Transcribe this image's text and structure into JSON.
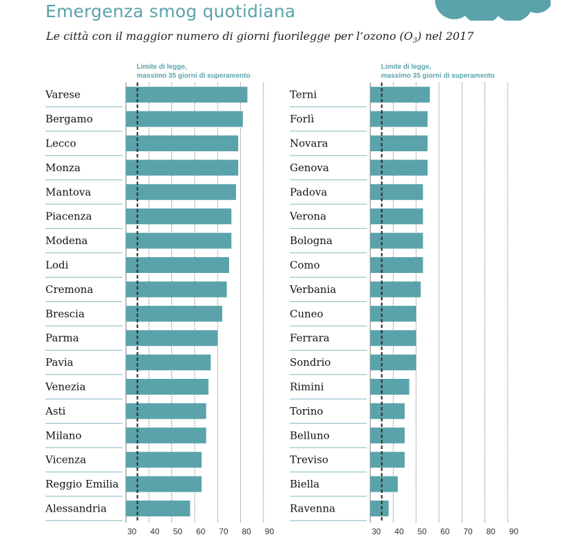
{
  "title": "Emergenza smog quotidiana",
  "subtitle": {
    "text": "Le città con il maggior numero di giorni fuorilegge per l’ozono (O",
    "subscript": "3",
    "suffix": ") nel 2017"
  },
  "colors": {
    "bar": "#5aa3ab",
    "title": "#5aa3ab",
    "grid": "#555555",
    "separator": "#7fb8be",
    "limit_line": "#333333"
  },
  "chart_data": [
    {
      "type": "bar",
      "orientation": "horizontal",
      "title": "",
      "xlabel": "",
      "ylabel": "",
      "xlim": [
        30,
        90
      ],
      "xticks": [
        30,
        40,
        50,
        60,
        70,
        80,
        90
      ],
      "limit": {
        "value": 35,
        "label_line1": "Limite di legge,",
        "label_line2": "massimo 35 giorni di superamento"
      },
      "categories": [
        "Varese",
        "Bergamo",
        "Lecco",
        "Monza",
        "Mantova",
        "Piacenza",
        "Modena",
        "Lodi",
        "Cremona",
        "Brescia",
        "Parma",
        "Pavia",
        "Venezia",
        "Asti",
        "Milano",
        "Vicenza",
        "Reggio Emilia",
        "Alessandria"
      ],
      "values": [
        83,
        81,
        79,
        79,
        78,
        76,
        76,
        75,
        74,
        72,
        70,
        67,
        66,
        65,
        65,
        63,
        63,
        58
      ]
    },
    {
      "type": "bar",
      "orientation": "horizontal",
      "title": "",
      "xlabel": "",
      "ylabel": "",
      "xlim": [
        30,
        90
      ],
      "xticks": [
        30,
        40,
        50,
        60,
        70,
        80,
        90
      ],
      "limit": {
        "value": 35,
        "label_line1": "Limite di legge,",
        "label_line2": "massimo 35 giorni di superamento"
      },
      "categories": [
        "Terni",
        "Forlì",
        "Novara",
        "Genova",
        "Padova",
        "Verona",
        "Bologna",
        "Como",
        "Verbania",
        "Cuneo",
        "Ferrara",
        "Sondrio",
        "Rimini",
        "Torino",
        "Belluno",
        "Treviso",
        "Biella",
        "Ravenna"
      ],
      "values": [
        56,
        55,
        55,
        55,
        53,
        53,
        53,
        53,
        52,
        50,
        50,
        50,
        47,
        45,
        45,
        45,
        42,
        38
      ]
    }
  ]
}
